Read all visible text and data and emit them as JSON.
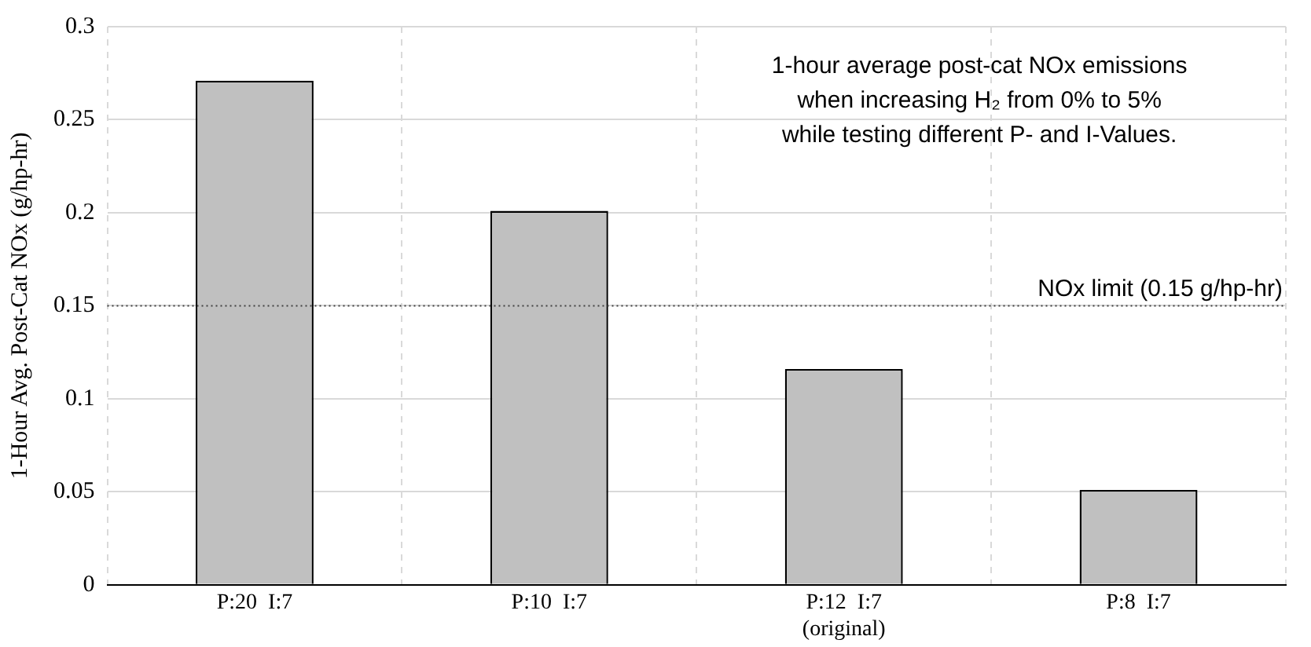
{
  "chart_data": {
    "type": "bar",
    "ylabel": "1-Hour Avg. Post-Cat NOx (g/hp-hr)",
    "categories": [
      "P:20  I:7",
      "P:10  I:7",
      "P:12  I:7\n(original)",
      "P:8  I:7"
    ],
    "values": [
      0.271,
      0.201,
      0.116,
      0.051
    ],
    "color": "#c0c0c0",
    "ylim": [
      0,
      0.3
    ],
    "yticks": [
      0,
      0.05,
      0.1,
      0.15,
      0.2,
      0.25,
      0.3
    ],
    "grid": true,
    "ref_lines": [
      {
        "axis": "y",
        "value": 0.15,
        "label": "NOx limit (0.15 g/hp-hr)",
        "color": "#404040",
        "line_style": "dotted"
      }
    ],
    "annotations": [
      "1-hour average post-cat NOx emissions\nwhen increasing H₂ from 0% to 5%\nwhile testing different P- and I-Values."
    ]
  }
}
